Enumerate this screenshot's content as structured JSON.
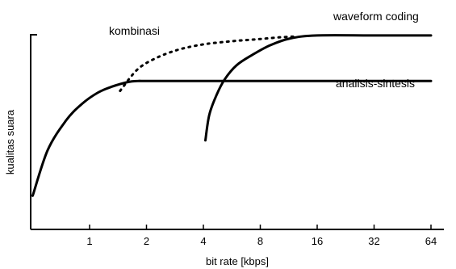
{
  "chart_data": {
    "type": "line",
    "xlabel": "bit rate [kbps]",
    "ylabel": "kualitas suara",
    "x_scale": "log2",
    "x_ticks": [
      "1",
      "2",
      "4",
      "8",
      "16",
      "32",
      "64"
    ],
    "x_tick_values": [
      1,
      2,
      4,
      8,
      16,
      32,
      64
    ],
    "xlim": [
      0.5,
      64
    ],
    "ylim": [
      0,
      1
    ],
    "grid": false,
    "legend": "none",
    "series": [
      {
        "name": "analisis-sintesis",
        "style": "solid",
        "x": [
          0.5,
          0.6,
          0.75,
          0.9,
          1.1,
          1.3,
          1.6,
          1.8,
          2.0,
          4,
          8,
          16,
          32,
          64
        ],
        "y": [
          0.17,
          0.4,
          0.55,
          0.63,
          0.69,
          0.72,
          0.745,
          0.75,
          0.75,
          0.75,
          0.75,
          0.75,
          0.75,
          0.75
        ]
      },
      {
        "name": "kombinasi",
        "style": "dotted",
        "x": [
          1.45,
          1.8,
          2.3,
          3.0,
          4.0,
          5.5,
          7.5,
          10,
          12.5
        ],
        "y": [
          0.7,
          0.81,
          0.87,
          0.91,
          0.935,
          0.95,
          0.96,
          0.97,
          0.975
        ]
      },
      {
        "name": "waveform coding",
        "style": "solid",
        "x": [
          4.1,
          4.3,
          4.7,
          5.2,
          6.0,
          7.2,
          9.0,
          11.5,
          16,
          32,
          64
        ],
        "y": [
          0.45,
          0.58,
          0.68,
          0.76,
          0.83,
          0.88,
          0.93,
          0.965,
          0.98,
          0.98,
          0.98
        ]
      }
    ]
  }
}
